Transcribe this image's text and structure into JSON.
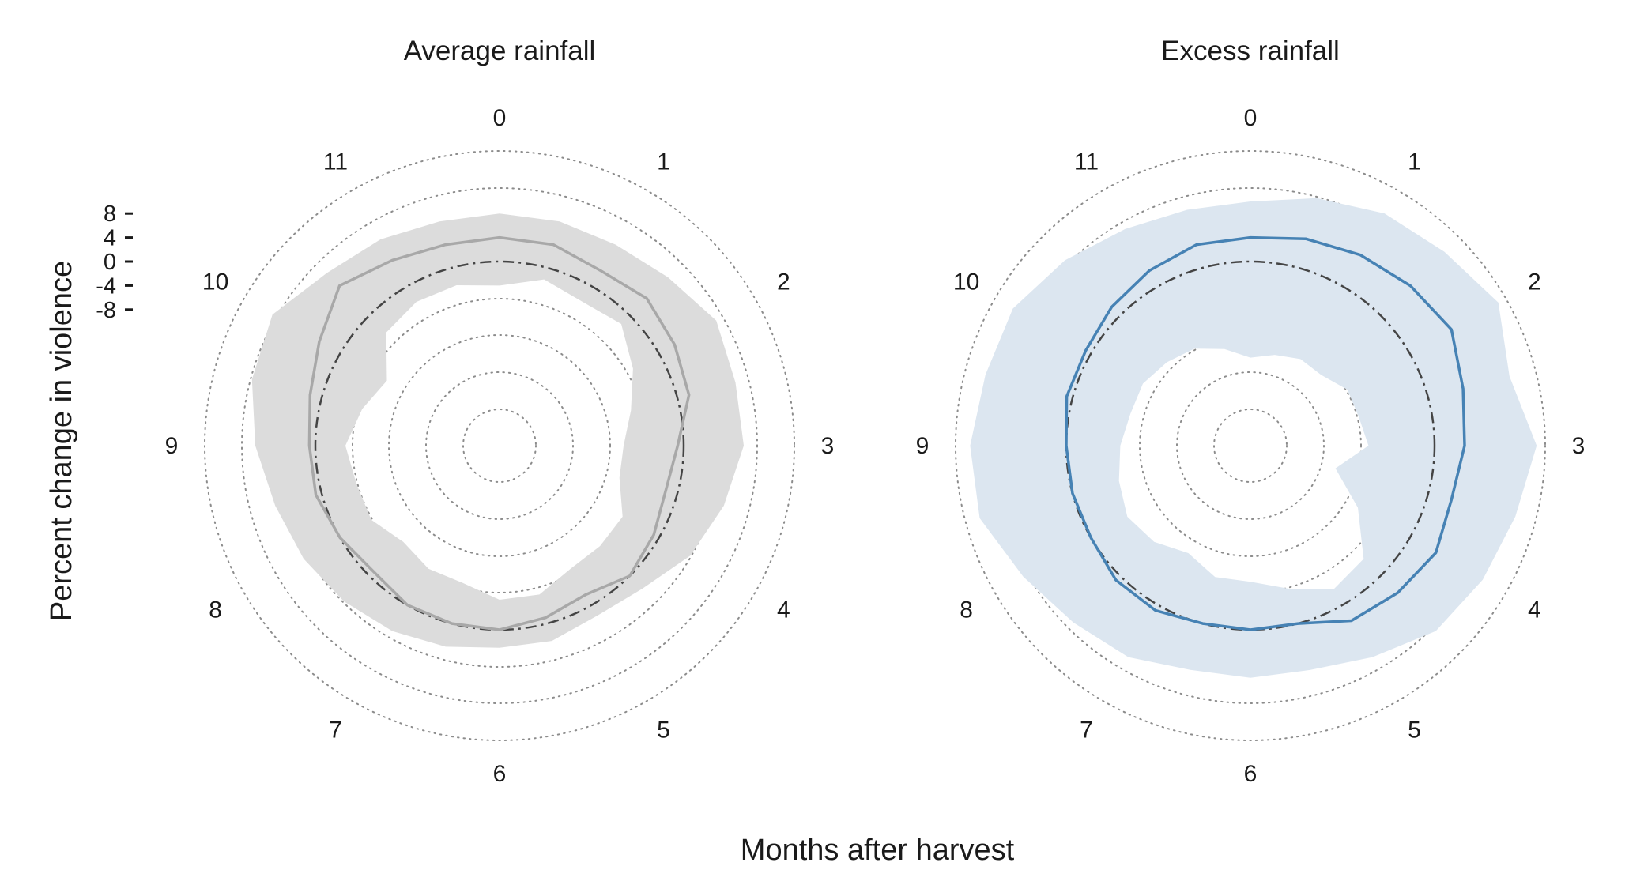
{
  "chart_data": [
    {
      "type": "polar-line",
      "title": "Average rainfall",
      "theta_labels": [
        "0",
        "1",
        "2",
        "3",
        "4",
        "5",
        "6",
        "7",
        "8",
        "9",
        "10",
        "11"
      ],
      "r_ticks": [
        8,
        4,
        0,
        -4,
        -8
      ],
      "r_tick_labels": [
        "8",
        "4",
        "0",
        "-4",
        "-8"
      ],
      "r_range": [
        -24,
        24
      ],
      "baseline": 0,
      "grid": "dotted circles",
      "line_color": "#a8a8a8",
      "band_color": "#dcdcdc",
      "x": [
        0,
        0.5,
        1,
        1.5,
        2,
        2.5,
        3,
        3.5,
        4,
        4.5,
        5,
        5.5,
        6,
        6.5,
        7,
        7.5,
        8,
        8.5,
        9,
        9.5,
        10,
        10.5,
        11,
        11.5
      ],
      "y": [
        4,
        4,
        3,
        4,
        3,
        2,
        -1,
        -2,
        -1,
        0,
        -2,
        -1,
        0,
        0,
        0,
        -1,
        0,
        1,
        1,
        2,
        4,
        7,
        5,
        4
      ],
      "lower": [
        -4,
        -2,
        -3,
        -2,
        -5,
        -8,
        -10,
        -10,
        -7,
        -7,
        -7,
        -5,
        -5,
        -7,
        -7,
        -8,
        -6,
        -6,
        -5,
        -7,
        -9,
        -4,
        -3,
        -3
      ],
      "upper": [
        8,
        8,
        8,
        9,
        11,
        10,
        10,
        8,
        6,
        3,
        2,
        3,
        3,
        4,
        5,
        6,
        7,
        8,
        10,
        12,
        13,
        10,
        9,
        8
      ]
    },
    {
      "type": "polar-line",
      "title": "Excess rainfall",
      "theta_labels": [
        "0",
        "1",
        "2",
        "3",
        "4",
        "5",
        "6",
        "7",
        "8",
        "9",
        "10",
        "11"
      ],
      "r_ticks": [
        8,
        4,
        0,
        -4,
        -8
      ],
      "r_tick_labels": [
        "8",
        "4",
        "0",
        "-4",
        "-8"
      ],
      "r_range": [
        -24,
        24
      ],
      "baseline": 0,
      "grid": "dotted circles",
      "line_color": "#4682b4",
      "band_color": "#dce6f0",
      "x": [
        0,
        0.5,
        1,
        1.5,
        2,
        2.5,
        3,
        3.5,
        4,
        4.5,
        5,
        5.5,
        6,
        6.5,
        7,
        7.5,
        8,
        8.5,
        9,
        9.5,
        10,
        10.5,
        11,
        11.5
      ],
      "y": [
        4,
        5,
        6,
        7,
        8,
        6,
        5,
        4,
        5,
        4,
        3,
        0,
        0,
        0,
        1,
        1,
        0,
        0,
        0,
        1,
        1,
        2,
        3,
        4
      ],
      "lower": [
        -16,
        -15,
        -14,
        -14,
        -12,
        -12,
        -11,
        -16,
        -10,
        -4,
        -3,
        -6,
        -8,
        -8,
        -10,
        -8,
        -7,
        -8,
        -9,
        -10,
        -10,
        -11,
        -12,
        -14
      ],
      "upper": [
        10,
        12,
        14,
        15,
        17,
        14,
        17,
        15,
        14,
        13,
        10,
        8,
        8,
        8,
        10,
        11,
        13,
        16,
        16,
        15,
        15,
        13,
        11,
        10
      ]
    }
  ],
  "axes": {
    "ylabel": "Percent change in violence",
    "xlabel": "Months after harvest"
  }
}
